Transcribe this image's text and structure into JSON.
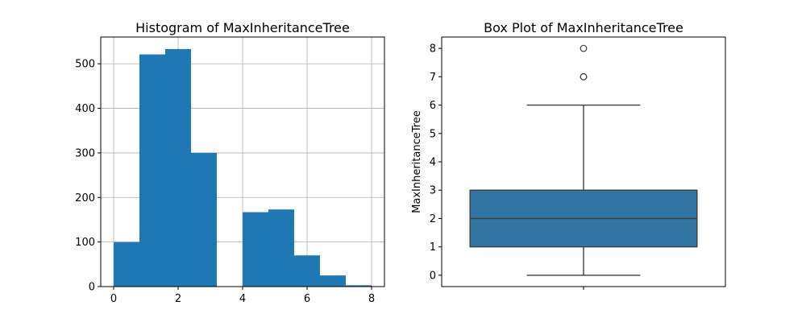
{
  "chart_data": [
    {
      "type": "bar",
      "title": "Histogram of MaxInheritanceTree",
      "xlabel": "",
      "ylabel": "",
      "bin_edges": [
        0,
        0.8,
        1.6,
        2.4,
        3.2,
        4.0,
        4.8,
        5.6,
        6.4,
        7.2,
        8.0
      ],
      "values": [
        100,
        521,
        533,
        300,
        0,
        167,
        173,
        70,
        25,
        3
      ],
      "xlim": [
        -0.4,
        8.4
      ],
      "ylim": [
        0,
        560
      ],
      "xticks": [
        0,
        2,
        4,
        6,
        8
      ],
      "yticks": [
        0,
        100,
        200,
        300,
        400,
        500
      ],
      "grid": true,
      "color": "#1f77b4"
    },
    {
      "type": "box",
      "title": "Box Plot of MaxInheritanceTree",
      "xlabel": "",
      "ylabel": "MaxInheritanceTree",
      "min": 0,
      "q1": 1,
      "median": 2,
      "q3": 3,
      "max": 6,
      "outliers": [
        7,
        7,
        8
      ],
      "ylim": [
        -0.4,
        8.4
      ],
      "yticks": [
        0,
        1,
        2,
        3,
        4,
        5,
        6,
        7,
        8
      ],
      "grid": false,
      "color": "#3274a1"
    }
  ]
}
